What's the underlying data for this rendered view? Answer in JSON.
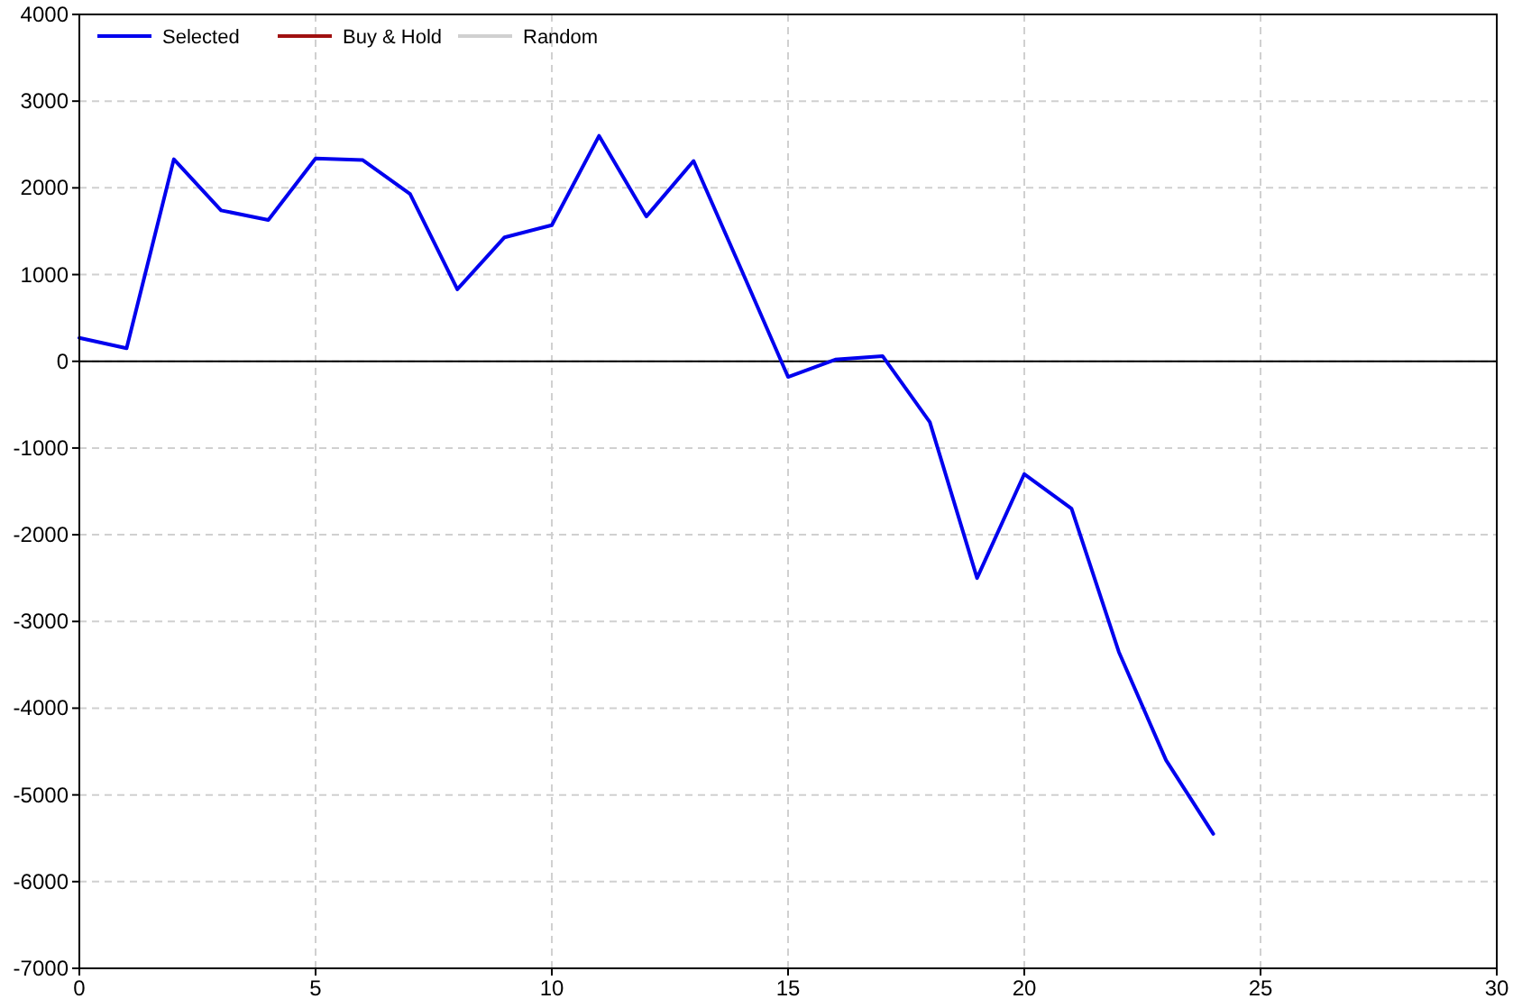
{
  "chart_data": {
    "type": "line",
    "x": [
      0,
      1,
      2,
      3,
      4,
      5,
      6,
      7,
      8,
      9,
      10,
      11,
      12,
      13,
      14,
      15,
      16,
      17,
      18,
      19,
      20,
      21,
      22,
      23,
      24
    ],
    "series": [
      {
        "name": "Selected",
        "color": "#0000ee",
        "values": [
          270,
          150,
          2330,
          1740,
          1630,
          2340,
          2320,
          1930,
          830,
          1430,
          1570,
          2600,
          1670,
          2310,
          1070,
          -180,
          20,
          60,
          -700,
          -2500,
          -1300,
          -1700,
          -3350,
          -4600,
          -5450
        ]
      },
      {
        "name": "Buy & Hold",
        "color": "#a01010",
        "values": [
          null,
          null,
          null,
          null,
          null,
          null,
          null,
          null,
          null,
          null,
          null,
          null,
          null,
          null,
          null,
          null,
          null,
          null,
          null,
          null,
          null,
          null,
          null,
          null,
          null
        ]
      },
      {
        "name": "Random",
        "color": "#d0d0d0",
        "values": [
          null,
          null,
          null,
          null,
          null,
          null,
          null,
          null,
          null,
          null,
          null,
          null,
          null,
          null,
          null,
          null,
          null,
          null,
          null,
          null,
          null,
          null,
          null,
          null,
          null
        ]
      }
    ],
    "xlim": [
      0,
      30
    ],
    "xticks": [
      0,
      5,
      10,
      15,
      20,
      25,
      30
    ],
    "ylim": [
      -7000,
      4000
    ],
    "yticks": [
      -7000,
      -6000,
      -5000,
      -4000,
      -3000,
      -2000,
      -1000,
      0,
      1000,
      2000,
      3000,
      4000
    ],
    "ref_lines": [
      {
        "axis": "y",
        "value": 0,
        "color": "#000000"
      }
    ],
    "grid": true,
    "legend": "top left",
    "line_style": "solid",
    "marker": "none"
  }
}
